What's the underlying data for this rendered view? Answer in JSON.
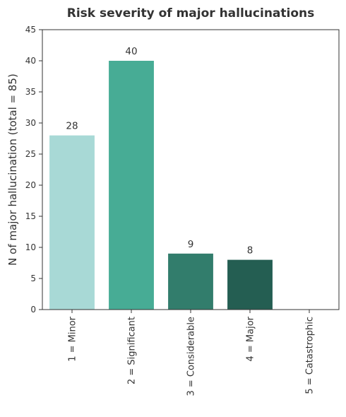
{
  "chart_data": {
    "type": "bar",
    "title": "Risk severity of major hallucinations",
    "xlabel": "",
    "ylabel": "N of major hallucination (total = 85)",
    "categories": [
      "1 = Minor",
      "2 = Significant",
      "3 = Considerable",
      "4 = Major",
      "5 = Catastrophic"
    ],
    "values": [
      28,
      40,
      9,
      8,
      0
    ],
    "data_labels": [
      "28",
      "40",
      "9",
      "8",
      ""
    ],
    "colors": [
      "#a8d9d6",
      "#47ac95",
      "#327d6c",
      "#245e52",
      "#1b4a40"
    ],
    "ylim": [
      0,
      45
    ],
    "yticks": [
      0,
      5,
      10,
      15,
      20,
      25,
      30,
      35,
      40,
      45
    ],
    "grid": false,
    "legend": "none"
  }
}
